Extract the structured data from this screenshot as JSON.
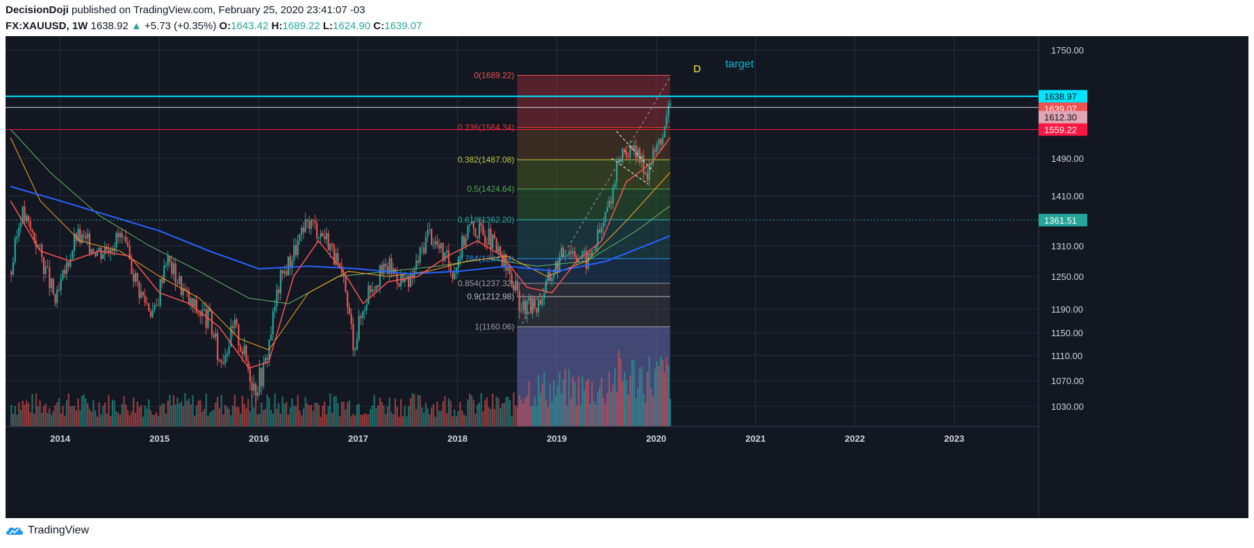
{
  "header": {
    "author": "DecisionDoji",
    "published": "published on TradingView.com, February 25, 2020 23:41:07 -03",
    "symbol": "FX:XAUUSD, 1W",
    "last": "1638.92",
    "change_arrow": "▲",
    "change": "+5.73 (+0.35%)",
    "o_label": "O:",
    "o": "1643.42",
    "h_label": "H:",
    "h": "1689.22",
    "l_label": "L:",
    "l": "1624.90",
    "c_label": "C:",
    "c": "1639.07"
  },
  "footer": {
    "brand": "TradingView",
    "logo_icon": "tradingview-cloud-icon"
  },
  "colors": {
    "background": "#131722",
    "up": "#26a69a",
    "down": "#ef5350",
    "cyan_line": "#00e5ff",
    "red_line": "#ff1744",
    "blue_ma": "#2962ff"
  },
  "annotations": {
    "d_label": "D",
    "target_label": "target"
  },
  "chart_data": {
    "type": "candlestick",
    "ylim": [
      1000,
      1780
    ],
    "x_tick_labels": [
      "2014",
      "2015",
      "2016",
      "2017",
      "2018",
      "2019",
      "2020",
      "2021",
      "2022",
      "2023"
    ],
    "y_tick_labels": [
      "1750.00",
      "1490.00",
      "1410.00",
      "1310.00",
      "1250.00",
      "1190.00",
      "1150.00",
      "1110.00",
      "1070.00",
      "1030.00"
    ],
    "y_tick_values": [
      1750,
      1490,
      1410,
      1310,
      1250,
      1190,
      1150,
      1110,
      1070,
      1030
    ],
    "price_tags": [
      {
        "label": "1638.97",
        "value": 1638.97,
        "color": "#00e5ff",
        "text_color": "#131722"
      },
      {
        "label": "1639.07",
        "value": 1639.07,
        "color": "#ef5350",
        "text_color": "#ffffff"
      },
      {
        "label": "1559.22",
        "value": 1559.22,
        "color": "#ff1744",
        "text_color": "#ffffff"
      },
      {
        "label": "1612.30",
        "value": 1612.3,
        "color": "#e1a5b4",
        "text_color": "#131722"
      },
      {
        "label": "1361.51",
        "value": 1361.51,
        "color": "#26a69a",
        "text_color": "#ffffff"
      }
    ],
    "horizontal_lines": [
      {
        "value": 1638.97,
        "color": "#00e5ff",
        "style": "solid"
      },
      {
        "value": 1612.3,
        "color": "#d1d4dc",
        "style": "solid"
      },
      {
        "value": 1559.22,
        "color": "#ff1744",
        "style": "solid"
      },
      {
        "value": 1361.51,
        "color": "#26a69a",
        "style": "dotted"
      }
    ],
    "fib_levels": [
      {
        "label": "0(1689.22)",
        "value": 1689.22,
        "color": "#ef5350"
      },
      {
        "label": "0.236(1564.34)",
        "value": 1564.34,
        "color": "#e53935"
      },
      {
        "label": "0.382(1487.08)",
        "value": 1487.08,
        "color": "#c0ca33"
      },
      {
        "label": "0.5(1424.64)",
        "value": 1424.64,
        "color": "#4caf50"
      },
      {
        "label": "0.618(1362.20)",
        "value": 1362.2,
        "color": "#26a69a"
      },
      {
        "label": "0.764(1284.94)",
        "value": 1284.94,
        "color": "#2196f3"
      },
      {
        "label": "0.854(1237.32)",
        "value": 1237.32,
        "color": "#9e9e9e"
      },
      {
        "label": "0.9(1212.98)",
        "value": 1212.98,
        "color": "#bdbdbd"
      },
      {
        "label": "1(1160.06)",
        "value": 1160.06,
        "color": "#9e9e9e"
      }
    ],
    "price_path": [
      [
        2013.5,
        1260
      ],
      [
        2013.6,
        1380
      ],
      [
        2013.75,
        1320
      ],
      [
        2013.95,
        1200
      ],
      [
        2014.15,
        1330
      ],
      [
        2014.4,
        1300
      ],
      [
        2014.6,
        1330
      ],
      [
        2014.8,
        1220
      ],
      [
        2014.95,
        1180
      ],
      [
        2015.05,
        1290
      ],
      [
        2015.3,
        1200
      ],
      [
        2015.5,
        1170
      ],
      [
        2015.6,
        1100
      ],
      [
        2015.75,
        1160
      ],
      [
        2015.95,
        1060
      ],
      [
        2016.05,
        1090
      ],
      [
        2016.2,
        1240
      ],
      [
        2016.5,
        1360
      ],
      [
        2016.7,
        1320
      ],
      [
        2016.85,
        1230
      ],
      [
        2016.95,
        1130
      ],
      [
        2017.1,
        1230
      ],
      [
        2017.3,
        1270
      ],
      [
        2017.5,
        1230
      ],
      [
        2017.7,
        1340
      ],
      [
        2017.95,
        1260
      ],
      [
        2018.1,
        1350
      ],
      [
        2018.3,
        1330
      ],
      [
        2018.5,
        1260
      ],
      [
        2018.65,
        1190
      ],
      [
        2018.8,
        1200
      ],
      [
        2018.95,
        1260
      ],
      [
        2019.1,
        1310
      ],
      [
        2019.3,
        1280
      ],
      [
        2019.45,
        1350
      ],
      [
        2019.55,
        1420
      ],
      [
        2019.65,
        1510
      ],
      [
        2019.8,
        1500
      ],
      [
        2019.9,
        1460
      ],
      [
        2020.0,
        1520
      ],
      [
        2020.08,
        1560
      ],
      [
        2020.14,
        1640
      ]
    ],
    "ma_red": [
      [
        2013.5,
        1400
      ],
      [
        2013.8,
        1300
      ],
      [
        2014.1,
        1280
      ],
      [
        2014.4,
        1300
      ],
      [
        2014.7,
        1290
      ],
      [
        2015.0,
        1220
      ],
      [
        2015.3,
        1200
      ],
      [
        2015.6,
        1160
      ],
      [
        2015.9,
        1090
      ],
      [
        2016.1,
        1100
      ],
      [
        2016.35,
        1250
      ],
      [
        2016.6,
        1320
      ],
      [
        2016.85,
        1260
      ],
      [
        2017.05,
        1200
      ],
      [
        2017.3,
        1240
      ],
      [
        2017.6,
        1250
      ],
      [
        2017.9,
        1290
      ],
      [
        2018.2,
        1320
      ],
      [
        2018.45,
        1290
      ],
      [
        2018.7,
        1230
      ],
      [
        2018.95,
        1220
      ],
      [
        2019.2,
        1280
      ],
      [
        2019.45,
        1320
      ],
      [
        2019.7,
        1440
      ],
      [
        2019.95,
        1480
      ],
      [
        2020.14,
        1540
      ]
    ],
    "ma_orange": [
      [
        2013.5,
        1540
      ],
      [
        2013.8,
        1400
      ],
      [
        2014.2,
        1320
      ],
      [
        2014.6,
        1300
      ],
      [
        2015.0,
        1250
      ],
      [
        2015.4,
        1210
      ],
      [
        2015.8,
        1140
      ],
      [
        2016.1,
        1120
      ],
      [
        2016.5,
        1220
      ],
      [
        2016.9,
        1260
      ],
      [
        2017.3,
        1250
      ],
      [
        2017.7,
        1260
      ],
      [
        2018.1,
        1280
      ],
      [
        2018.5,
        1290
      ],
      [
        2018.9,
        1250
      ],
      [
        2019.3,
        1280
      ],
      [
        2019.7,
        1360
      ],
      [
        2020.14,
        1460
      ]
    ],
    "ma_green": [
      [
        2013.5,
        1560
      ],
      [
        2013.9,
        1460
      ],
      [
        2014.4,
        1370
      ],
      [
        2014.9,
        1310
      ],
      [
        2015.4,
        1260
      ],
      [
        2015.9,
        1210
      ],
      [
        2016.3,
        1200
      ],
      [
        2016.8,
        1250
      ],
      [
        2017.3,
        1260
      ],
      [
        2017.8,
        1270
      ],
      [
        2018.3,
        1285
      ],
      [
        2018.8,
        1270
      ],
      [
        2019.3,
        1280
      ],
      [
        2019.8,
        1340
      ],
      [
        2020.14,
        1390
      ]
    ],
    "ma_blue": [
      [
        2013.5,
        1430
      ],
      [
        2014.0,
        1400
      ],
      [
        2014.5,
        1370
      ],
      [
        2015.0,
        1340
      ],
      [
        2015.5,
        1300
      ],
      [
        2016.0,
        1265
      ],
      [
        2016.5,
        1270
      ],
      [
        2017.0,
        1265
      ],
      [
        2017.5,
        1255
      ],
      [
        2018.0,
        1260
      ],
      [
        2018.5,
        1270
      ],
      [
        2019.0,
        1260
      ],
      [
        2019.5,
        1280
      ],
      [
        2020.14,
        1330
      ]
    ]
  }
}
